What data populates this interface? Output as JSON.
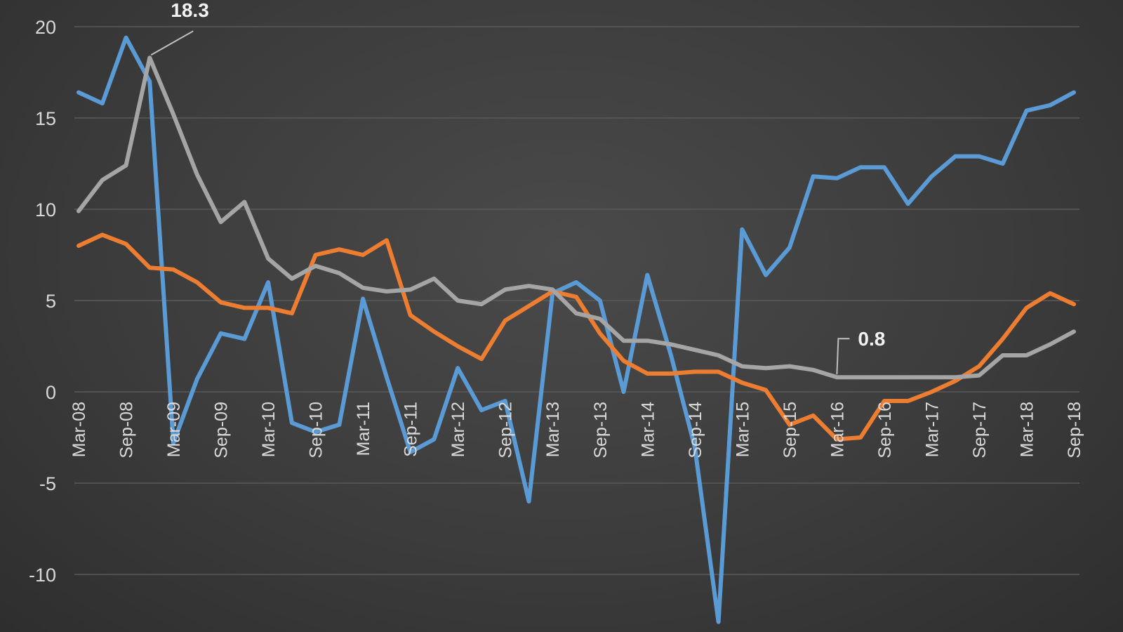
{
  "chart_data": {
    "type": "line",
    "ylim": [
      -12,
      20
    ],
    "yticks": [
      20,
      15,
      10,
      5,
      0,
      -5,
      -10
    ],
    "grid": true,
    "x": [
      "Mar-08",
      "Jun-08",
      "Sep-08",
      "Dec-08",
      "Mar-09",
      "Jun-09",
      "Sep-09",
      "Dec-09",
      "Mar-10",
      "Jun-10",
      "Sep-10",
      "Dec-10",
      "Mar-11",
      "Jun-11",
      "Sep-11",
      "Dec-11",
      "Mar-12",
      "Jun-12",
      "Sep-12",
      "Dec-12",
      "Mar-13",
      "Jun-13",
      "Sep-13",
      "Dec-13",
      "Mar-14",
      "Jun-14",
      "Sep-14",
      "Dec-14",
      "Mar-15",
      "Jun-15",
      "Sep-15",
      "Dec-15",
      "Mar-16",
      "Jun-16",
      "Sep-16",
      "Dec-16",
      "Mar-17",
      "Jun-17",
      "Sep-17",
      "Dec-17",
      "Mar-18",
      "Jun-18",
      "Sep-18"
    ],
    "x_tick_labels": [
      "Mar-08",
      "Sep-08",
      "Mar-09",
      "Sep-09",
      "Mar-10",
      "Sep-10",
      "Mar-11",
      "Sep-11",
      "Mar-12",
      "Sep-12",
      "Mar-13",
      "Sep-13",
      "Mar-14",
      "Sep-14",
      "Mar-15",
      "Sep-15",
      "Mar-16",
      "Sep-16",
      "Mar-17",
      "Sep-17",
      "Mar-18",
      "Sep-18"
    ],
    "series": [
      {
        "color": "#5b9bd5",
        "values": [
          16.4,
          15.8,
          19.4,
          17.0,
          -2.8,
          0.7,
          3.2,
          2.9,
          6.0,
          -1.7,
          -2.2,
          -1.8,
          5.1,
          0.8,
          -3.3,
          -2.6,
          1.3,
          -1.0,
          -0.5,
          -6.0,
          5.4,
          6.0,
          5.0,
          0.0,
          6.4,
          2.0,
          -3.0,
          -12.6,
          8.9,
          6.4,
          7.9,
          11.8,
          11.7,
          12.3,
          12.3,
          10.3,
          11.8,
          12.9,
          12.9,
          12.5,
          15.4,
          15.7,
          16.4
        ]
      },
      {
        "color": "#ed7d31",
        "values": [
          8.0,
          8.6,
          8.1,
          6.8,
          6.7,
          6.0,
          4.9,
          4.6,
          4.6,
          4.3,
          7.5,
          7.8,
          7.5,
          8.3,
          4.2,
          3.3,
          2.5,
          1.8,
          3.9,
          4.7,
          5.5,
          5.2,
          3.2,
          1.7,
          1.0,
          1.0,
          1.1,
          1.1,
          0.5,
          0.1,
          -1.8,
          -1.3,
          -2.6,
          -2.5,
          -0.5,
          -0.5,
          0.0,
          0.6,
          1.4,
          2.9,
          4.6,
          5.4,
          4.8
        ]
      },
      {
        "color": "#a5a5a5",
        "values": [
          9.9,
          11.6,
          12.4,
          18.3,
          15.2,
          11.9,
          9.3,
          10.4,
          7.3,
          6.2,
          6.9,
          6.5,
          5.7,
          5.5,
          5.6,
          6.2,
          5.0,
          4.8,
          5.6,
          5.8,
          5.6,
          4.3,
          4.0,
          2.8,
          2.8,
          2.6,
          2.3,
          2.0,
          1.4,
          1.3,
          1.4,
          1.2,
          0.8,
          0.8,
          0.8,
          0.8,
          0.8,
          0.8,
          0.9,
          2.0,
          2.0,
          2.6,
          3.3
        ]
      }
    ],
    "annotations": [
      {
        "text": "18.3",
        "series": 2,
        "x": "Dec-08"
      },
      {
        "text": "0.8",
        "series": 2,
        "x": "Mar-16"
      }
    ]
  }
}
